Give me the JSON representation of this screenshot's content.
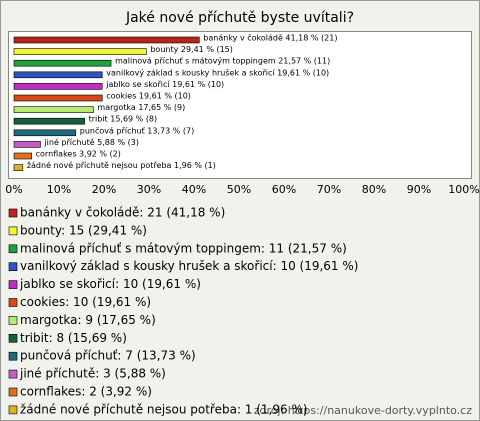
{
  "chart_data": {
    "type": "bar",
    "orientation": "horizontal",
    "title": "Jaké nové příchutě byste uvítali?",
    "categories": [
      "banánky v čokoládě",
      "bounty",
      "malinová příchuť s mátovým toppingem",
      "vanilkový základ s kousky hrušek a skořicí",
      "jablko se skořicí",
      "cookies",
      "margotka",
      "tribit",
      "punčová příchuť",
      "jiné příchutě",
      "cornflakes",
      "žádné nové příchutě nejsou potřeba"
    ],
    "values": [
      41.18,
      29.41,
      21.57,
      19.61,
      19.61,
      19.61,
      17.65,
      15.69,
      13.73,
      5.88,
      3.92,
      1.96
    ],
    "value_labels": [
      "banánky v čokoládě 41,18 % (21)",
      "bounty 29,41 % (15)",
      "malinová příchuť s mátovým toppingem 21,57 % (11)",
      "vanilkový základ s kousky hrušek a skořicí 19,61 % (10)",
      "jablko se skořicí 19,61 % (10)",
      "cookies 19,61 % (10)",
      "margotka 17,65 % (9)",
      "tribit 15,69 % (8)",
      "punčová příchuť 13,73 % (7)",
      "jiné příchutě 5,88 % (3)",
      "cornflakes 3,92 % (2)",
      "žádné nové příchutě nejsou potřeba 1,96 % (1)"
    ],
    "colors": [
      "#b8261a",
      "#f4f436",
      "#1fa13a",
      "#2f52c4",
      "#c42ac4",
      "#d8461c",
      "#b6ea72",
      "#14603a",
      "#1e6a78",
      "#c45ec4",
      "#e0701c",
      "#e0b02a"
    ],
    "legend_labels": [
      "banánky v čokoládě: 21 (41,18 %)",
      "bounty: 15 (29,41 %)",
      "malinová příchuť s mátovým toppingem: 11 (21,57 %)",
      "vanilkový základ s kousky hrušek a skořicí: 10 (19,61 %)",
      "jablko se skořicí: 10 (19,61 %)",
      "cookies: 10 (19,61 %)",
      "margotka: 9 (17,65 %)",
      "tribit: 8 (15,69 %)",
      "punčová příchuť: 7 (13,73 %)",
      "jiné příchutě: 3 (5,88 %)",
      "cornflakes: 2 (3,92 %)",
      "žádné nové příchutě nejsou potřeba: 1 (1,96 %)"
    ],
    "xlim": [
      0,
      100
    ],
    "xticks": [
      {
        "value": 0,
        "label": "0%"
      },
      {
        "value": 10,
        "label": "10%"
      },
      {
        "value": 20,
        "label": "20%"
      },
      {
        "value": 30,
        "label": "30%"
      },
      {
        "value": 40,
        "label": "40%"
      },
      {
        "value": 50,
        "label": "50%"
      },
      {
        "value": 60,
        "label": "60%"
      },
      {
        "value": 70,
        "label": "70%"
      },
      {
        "value": 80,
        "label": "80%"
      },
      {
        "value": 90,
        "label": "90%"
      },
      {
        "value": 100,
        "label": "100%"
      }
    ],
    "grid": false,
    "source": "zdroj: https://nanukove-dorty.vyplnto.cz"
  }
}
